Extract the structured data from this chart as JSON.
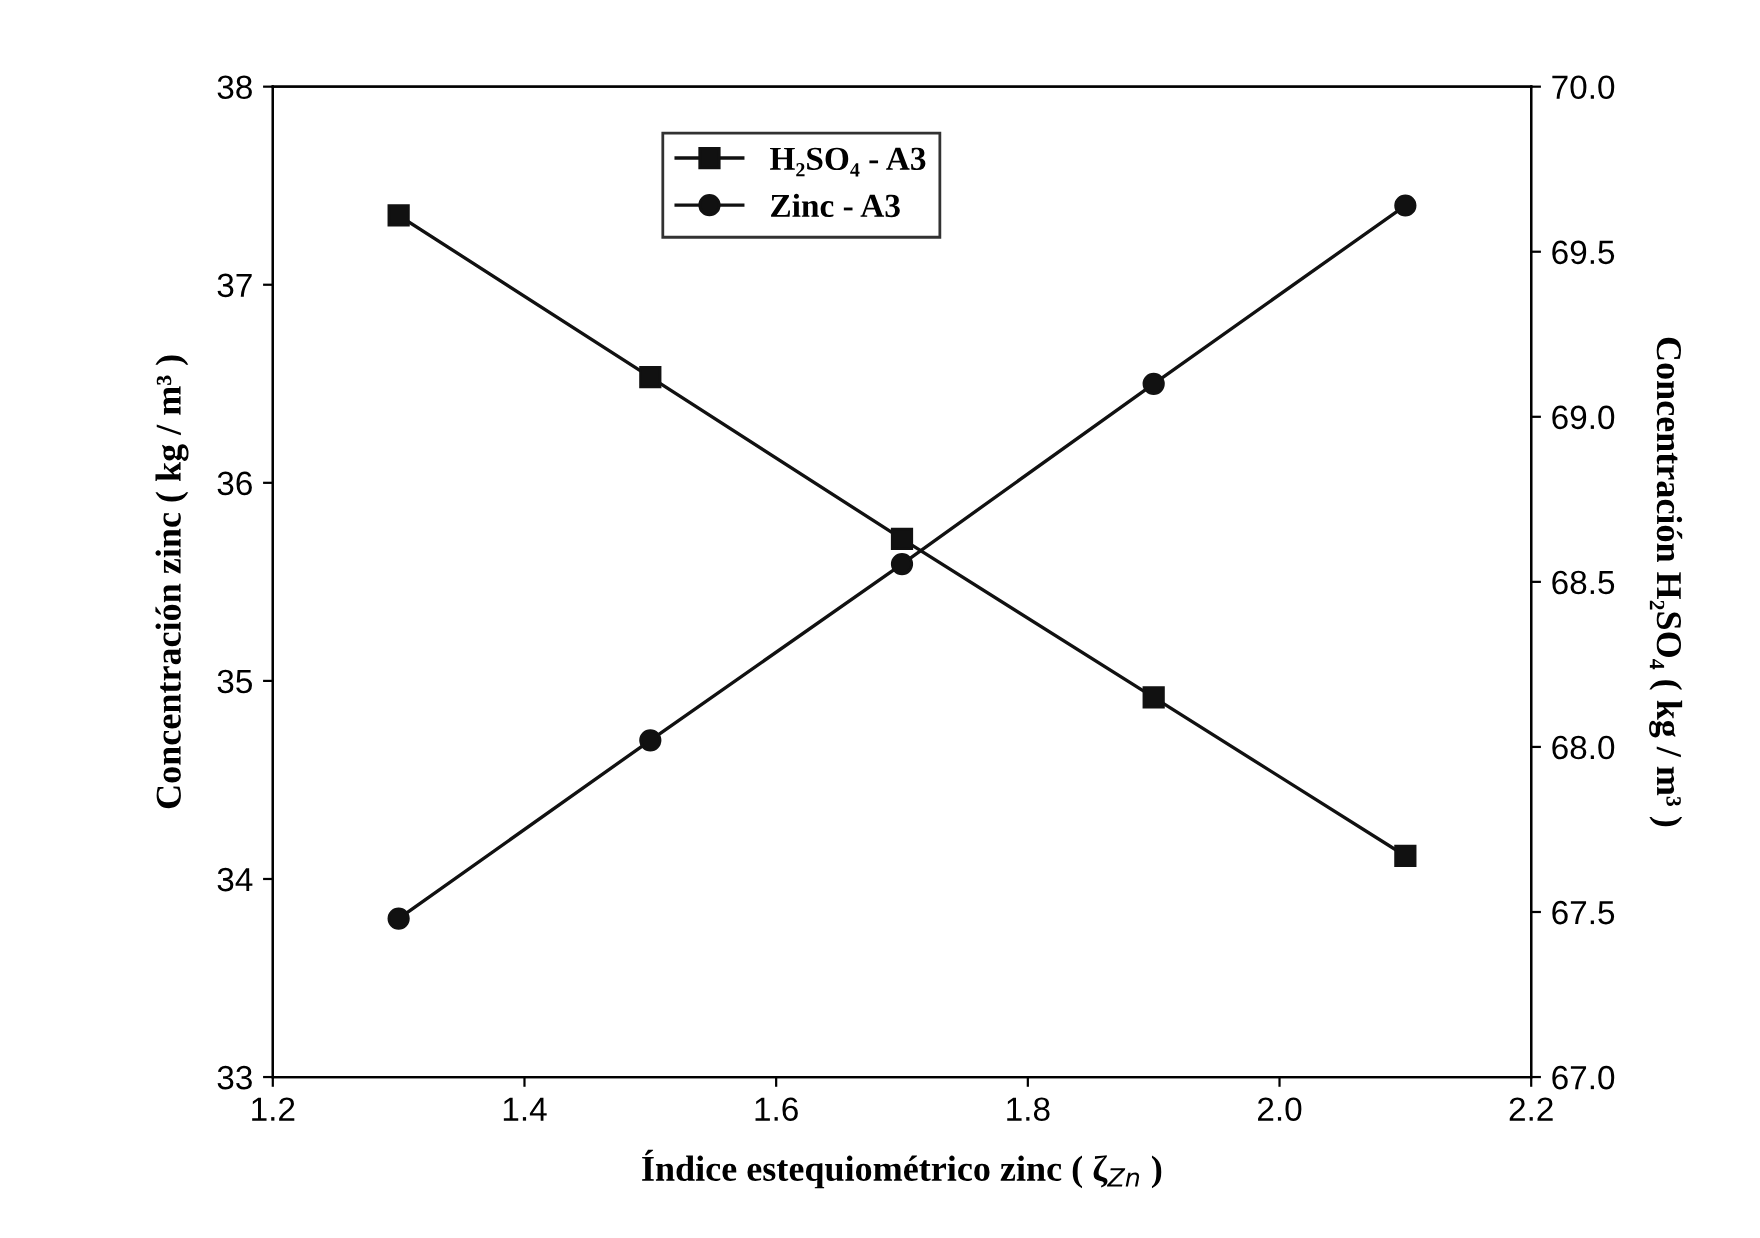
{
  "chart_data": {
    "type": "line",
    "x": [
      1.3,
      1.5,
      1.7,
      1.9,
      2.1
    ],
    "series": [
      {
        "name": "H₂SO₄ - A3",
        "color": "#111111",
        "marker": "square",
        "axis": "y2",
        "values": [
          69.61,
          69.12,
          68.63,
          68.15,
          67.67
        ]
      },
      {
        "name": "Zinc - A3",
        "color": "#111111",
        "marker": "circle",
        "values": [
          33.8,
          34.7,
          35.59,
          36.5,
          37.4
        ]
      }
    ],
    "xlabel": "Índice estequiométrico zinc ( ζ$_{Zn}$ )",
    "ylabel": "Concentración zinc ( kg / m³ )",
    "y2label": "Concentración H₂SO₄ ( kg / m³ )",
    "xlim": [
      1.2,
      2.2
    ],
    "xticks": [
      1.2,
      1.4,
      1.6,
      1.8,
      {
        "value": 2.0,
        "label": "2.0"
      },
      2.2
    ],
    "ylim": [
      33,
      38
    ],
    "yticks": [
      33,
      34,
      35,
      36,
      37,
      38
    ],
    "y2lim": [
      67.0,
      70.0
    ],
    "y2ticks": [
      {
        "value": 67.0,
        "label": "67.0"
      },
      67.5,
      {
        "value": 68.0,
        "label": "68.0"
      },
      68.5,
      {
        "value": 69.0,
        "label": "69.0"
      },
      69.5,
      {
        "value": 70.0,
        "label": "70.0"
      }
    ],
    "grid": false,
    "legend": "top",
    "line_style": "solid"
  }
}
